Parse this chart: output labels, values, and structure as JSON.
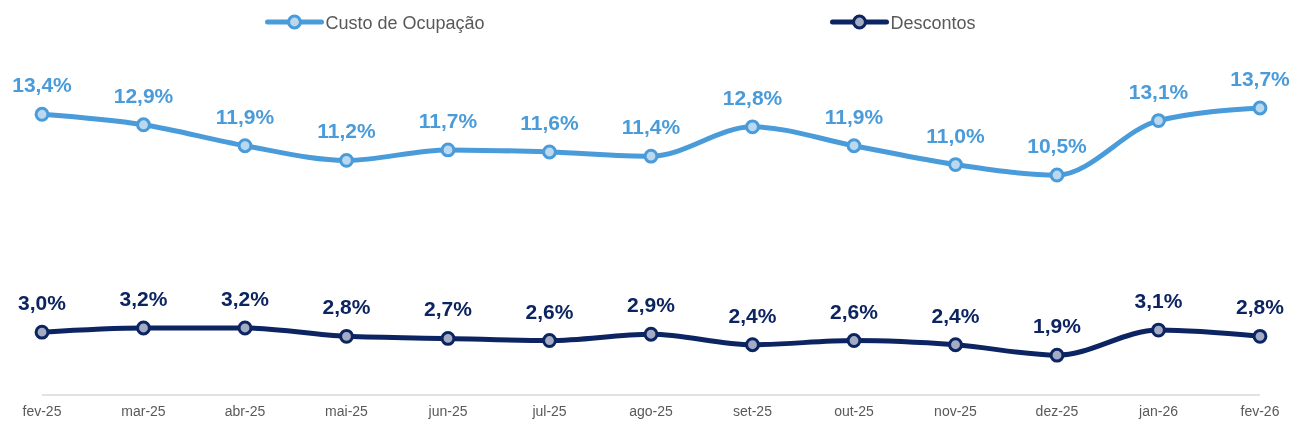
{
  "chart_data": {
    "type": "line",
    "categories": [
      "fev-25",
      "mar-25",
      "abr-25",
      "mai-25",
      "jun-25",
      "jul-25",
      "ago-25",
      "set-25",
      "out-25",
      "nov-25",
      "dez-25",
      "jan-26",
      "fev-26"
    ],
    "series": [
      {
        "name": "Custo de Ocupação",
        "color": "#4a9bd9",
        "values": [
          13.4,
          12.9,
          11.9,
          11.2,
          11.7,
          11.6,
          11.4,
          12.8,
          11.9,
          11.0,
          10.5,
          13.1,
          13.7
        ],
        "value_labels": [
          "13,4%",
          "12,9%",
          "11,9%",
          "11,2%",
          "11,7%",
          "11,6%",
          "11,4%",
          "12,8%",
          "11,9%",
          "11,0%",
          "10,5%",
          "13,1%",
          "13,7%"
        ]
      },
      {
        "name": "Descontos",
        "color": "#0c2461",
        "values": [
          3.0,
          3.2,
          3.2,
          2.8,
          2.7,
          2.6,
          2.9,
          2.4,
          2.6,
          2.4,
          1.9,
          3.1,
          2.8
        ],
        "value_labels": [
          "3,0%",
          "3,2%",
          "3,2%",
          "2,8%",
          "2,7%",
          "2,6%",
          "2,9%",
          "2,4%",
          "2,6%",
          "2,4%",
          "1,9%",
          "3,1%",
          "2,8%"
        ]
      }
    ],
    "tick_labels": "x",
    "legend": "top",
    "marker": "circle",
    "line_style": "solid"
  }
}
